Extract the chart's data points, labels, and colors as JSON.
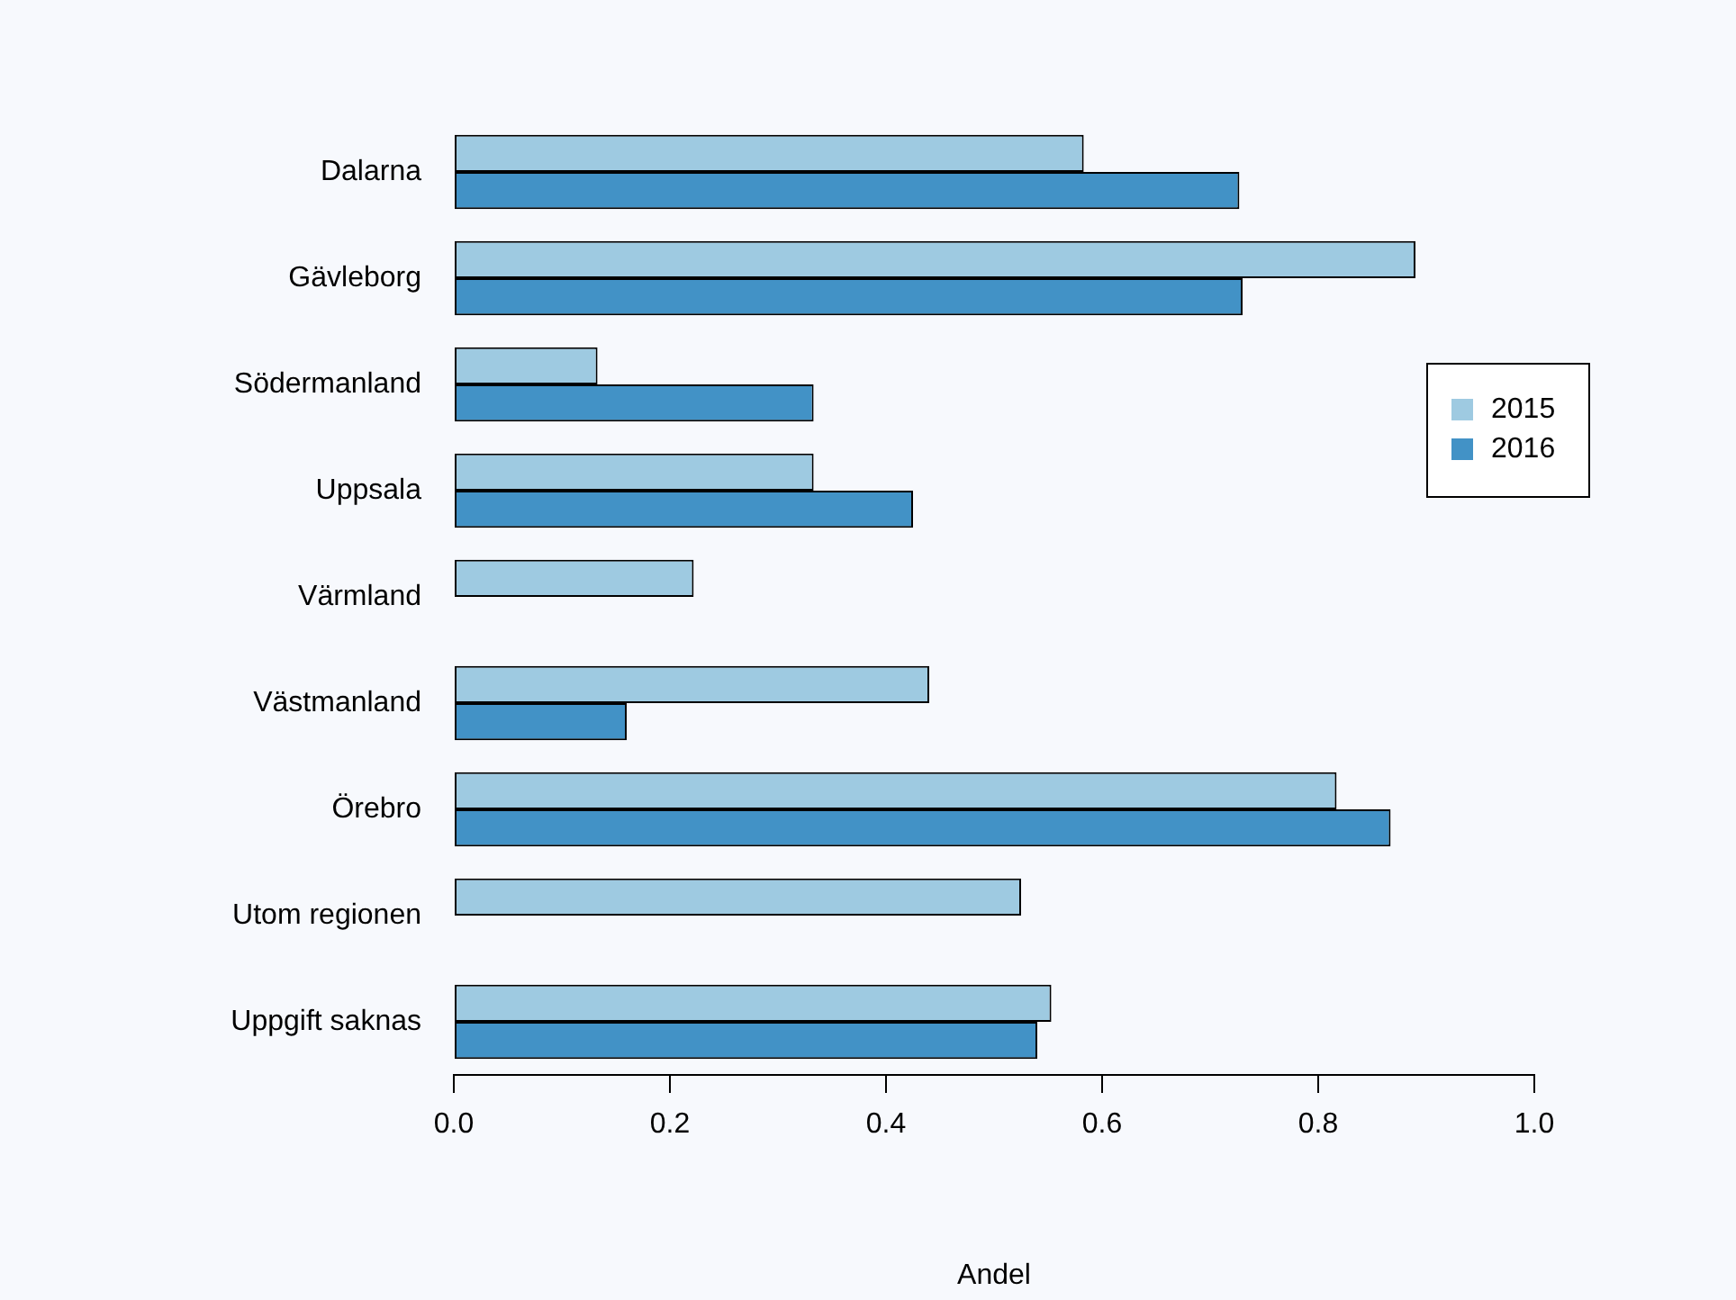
{
  "chart_data": {
    "type": "bar",
    "orientation": "horizontal",
    "xlabel": "Andel",
    "categories": [
      "Dalarna",
      "Gävleborg",
      "Södermanland",
      "Uppsala",
      "Värmland",
      "Västmanland",
      "Örebro",
      "Utom regionen",
      "Uppgift saknas"
    ],
    "series": [
      {
        "name": "2015",
        "color": "#9ecae1",
        "values": [
          0.583,
          0.89,
          0.133,
          0.333,
          0.222,
          0.44,
          0.817,
          0.525,
          0.553
        ]
      },
      {
        "name": "2016",
        "color": "#4292c6",
        "values": [
          0.727,
          0.73,
          0.333,
          0.425,
          0,
          0.16,
          0.867,
          null,
          0.54
        ]
      }
    ],
    "xlim": [
      0,
      1
    ],
    "xticks": [
      {
        "value": 0,
        "label": "0.0"
      },
      {
        "value": 0.2,
        "label": "0.2"
      },
      {
        "value": 0.4,
        "label": "0.4"
      },
      {
        "value": 0.6,
        "label": "0.6"
      },
      {
        "value": 0.8,
        "label": "0.8"
      },
      {
        "value": 1,
        "label": "1.0"
      }
    ],
    "grid": false,
    "legend": "right"
  }
}
